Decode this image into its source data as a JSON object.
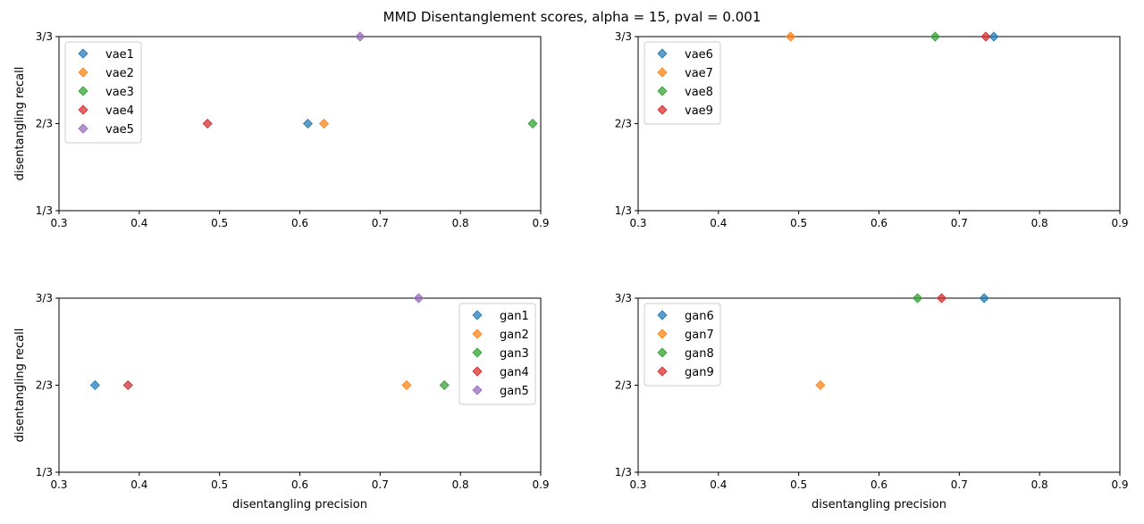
{
  "chart_data": {
    "type": "scatter",
    "title": "MMD Disentanglement scores, alpha = 15, pval = 0.001",
    "colors": [
      "#1f77b4",
      "#ff7f0e",
      "#2ca02c",
      "#d62728",
      "#9467bd"
    ],
    "marker": "diamond",
    "xlim": [
      0.3,
      0.9
    ],
    "ylim": [
      0.3333,
      1.0
    ],
    "x_ticks": [
      "0.3",
      "0.4",
      "0.5",
      "0.6",
      "0.7",
      "0.8",
      "0.9"
    ],
    "y_ticks": [
      "1/3",
      "2/3",
      "3/3"
    ],
    "y_tick_values": [
      0.3333,
      0.6667,
      1.0
    ],
    "subplots": [
      {
        "xlabel": "",
        "ylabel": "disentangling recall",
        "legend_position": "top-left",
        "series": [
          {
            "name": "vae1",
            "x": 0.61,
            "y": 0.6667
          },
          {
            "name": "vae2",
            "x": 0.63,
            "y": 0.6667
          },
          {
            "name": "vae3",
            "x": 0.89,
            "y": 0.6667
          },
          {
            "name": "vae4",
            "x": 0.485,
            "y": 0.6667
          },
          {
            "name": "vae5",
            "x": 0.675,
            "y": 1.0
          }
        ]
      },
      {
        "xlabel": "",
        "ylabel": "",
        "legend_position": "top-left",
        "series": [
          {
            "name": "vae6",
            "x": 0.743,
            "y": 1.0
          },
          {
            "name": "vae7",
            "x": 0.49,
            "y": 1.0
          },
          {
            "name": "vae8",
            "x": 0.67,
            "y": 1.0
          },
          {
            "name": "vae9",
            "x": 0.733,
            "y": 1.0
          }
        ]
      },
      {
        "xlabel": "disentangling precision",
        "ylabel": "disentangling recall",
        "legend_position": "top-right",
        "series": [
          {
            "name": "gan1",
            "x": 0.345,
            "y": 0.6667
          },
          {
            "name": "gan2",
            "x": 0.733,
            "y": 0.6667
          },
          {
            "name": "gan3",
            "x": 0.78,
            "y": 0.6667
          },
          {
            "name": "gan4",
            "x": 0.386,
            "y": 0.6667
          },
          {
            "name": "gan5",
            "x": 0.748,
            "y": 1.0
          }
        ]
      },
      {
        "xlabel": "disentangling precision",
        "ylabel": "",
        "legend_position": "top-left",
        "series": [
          {
            "name": "gan6",
            "x": 0.731,
            "y": 1.0
          },
          {
            "name": "gan7",
            "x": 0.527,
            "y": 0.6667
          },
          {
            "name": "gan8",
            "x": 0.648,
            "y": 1.0
          },
          {
            "name": "gan9",
            "x": 0.678,
            "y": 1.0
          }
        ]
      }
    ]
  }
}
